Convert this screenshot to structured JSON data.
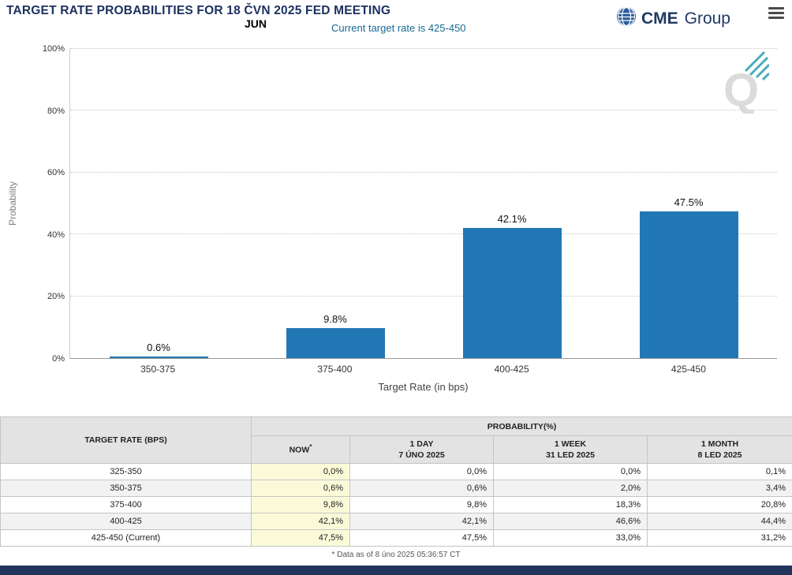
{
  "header": {
    "title": "TARGET RATE PROBABILITIES FOR 18 ČVN 2025 FED MEETING",
    "month_label": "JUN",
    "current_rate_note": "Current target rate is 425-450",
    "logo_cme": "CME",
    "logo_group": "Group"
  },
  "chart_data": {
    "type": "bar",
    "title": "",
    "categories": [
      "350-375",
      "375-400",
      "400-425",
      "425-450"
    ],
    "values": [
      0.6,
      9.8,
      42.1,
      47.5
    ],
    "value_labels": [
      "0.6%",
      "9.8%",
      "42.1%",
      "47.5%"
    ],
    "xlabel": "Target Rate (in bps)",
    "ylabel": "Probability",
    "ylim": [
      0,
      100
    ],
    "yticks": [
      "0%",
      "20%",
      "40%",
      "60%",
      "80%",
      "100%"
    ],
    "bar_color": "#2277b5",
    "grid": "horizontal-dotted",
    "legend": "none"
  },
  "table": {
    "rate_header": "TARGET RATE (BPS)",
    "group_header": "PROBABILITY(%)",
    "col_now": "NOW",
    "col_now_sup": "*",
    "col_1day": "1 DAY",
    "col_1day_date": "7 ÚNO 2025",
    "col_1week": "1 WEEK",
    "col_1week_date": "31 LED 2025",
    "col_1month": "1 MONTH",
    "col_1month_date": "8 LED 2025",
    "rows": [
      {
        "rate": "325-350",
        "values": [
          "0,0%",
          "0,0%",
          "0,0%",
          "0,1%"
        ]
      },
      {
        "rate": "350-375",
        "values": [
          "0,6%",
          "0,6%",
          "2,0%",
          "3,4%"
        ]
      },
      {
        "rate": "375-400",
        "values": [
          "9,8%",
          "9,8%",
          "18,3%",
          "20,8%"
        ]
      },
      {
        "rate": "400-425",
        "values": [
          "42,1%",
          "42,1%",
          "46,6%",
          "44,4%"
        ]
      },
      {
        "rate": "425-450 (Current)",
        "values": [
          "47,5%",
          "47,5%",
          "33,0%",
          "31,2%"
        ]
      }
    ],
    "footnote": "* Data as of 8 úno 2025 05:36:57 CT"
  },
  "colors": {
    "accent_navy": "#1d3160",
    "bar_blue": "#2277b5",
    "now_column_bg": "#fafad9",
    "footer_bar": "#22345c"
  }
}
